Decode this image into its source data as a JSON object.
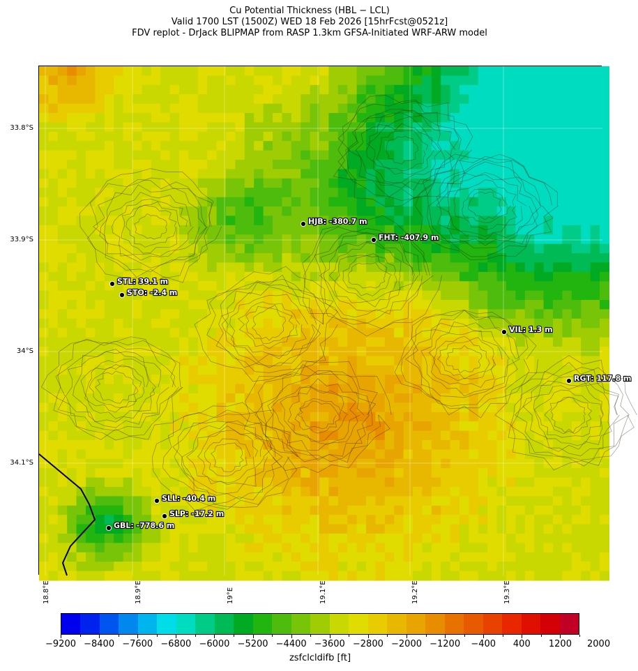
{
  "title": {
    "line1": "Cu Potential Thickness (HBL − LCL)",
    "line2": "Valid 1700 LST (1500Z) WED 18 Feb 2026 [15hrFcst@0521z]",
    "line3": "FDV replot - DrJack BLIPMAP from RASP 1.3km GFSA-Initiated WRF-ARW model"
  },
  "map": {
    "lat_ticks": [
      "33.8°S",
      "33.9°S",
      "34°S",
      "34.1°S"
    ],
    "lon_ticks": [
      "18.8°E",
      "18.9°E",
      "19°E",
      "19.1°E",
      "19.2°E",
      "19.3°E"
    ],
    "stations": [
      {
        "code": "HJB",
        "label": "HJB: -380.7 m"
      },
      {
        "code": "FHT",
        "label": "FHT: -407.9 m"
      },
      {
        "code": "STL",
        "label": "STL: 39.1 m"
      },
      {
        "code": "STO",
        "label": "STO: -2.4 m"
      },
      {
        "code": "VIL",
        "label": "VIL: 1.3 m"
      },
      {
        "code": "RGT",
        "label": "RGT: 117.8 m"
      },
      {
        "code": "SLL",
        "label": "SLL: -40.4 m"
      },
      {
        "code": "SLP",
        "label": "SLP: -17.2 m"
      },
      {
        "code": "GBL",
        "label": "GBL: -778.6 m"
      }
    ]
  },
  "colorbar": {
    "label": "zsfclcldifb [ft]",
    "tick_labels": [
      "−9200",
      "−8400",
      "−7600",
      "−6800",
      "−6000",
      "−5200",
      "−4400",
      "−3600",
      "−2800",
      "−2000",
      "−1200",
      "−400",
      "400",
      "1200",
      "2000"
    ],
    "colors": [
      "#0000ee",
      "#0022ee",
      "#0055ee",
      "#0088ee",
      "#00b4ee",
      "#00dde8",
      "#00dcc0",
      "#00cc88",
      "#00bb55",
      "#00aa22",
      "#22b40f",
      "#4ebc0c",
      "#77c408",
      "#a0cc04",
      "#c8d800",
      "#e0dc00",
      "#e8cc00",
      "#e8b800",
      "#e8a400",
      "#e88c00",
      "#e87200",
      "#e85a00",
      "#e84200",
      "#e82600",
      "#e01000",
      "#d40008",
      "#c00024"
    ]
  }
}
